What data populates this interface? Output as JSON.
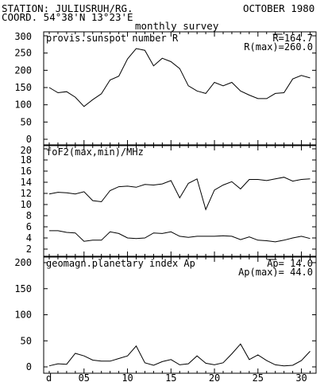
{
  "header": {
    "station": "STATION: JULIUSRUH/RG.",
    "coord": "COORD. 54°38'N 13°23'E",
    "month": "OCTOBER 1980",
    "survey": "monthly survey"
  },
  "chart_data": [
    {
      "type": "line",
      "title": "provis.sunspot number R",
      "stats": [
        "R=164.7",
        "R(max)=260.0"
      ],
      "ylim": [
        0,
        300
      ],
      "yticks": [
        "0",
        "50",
        "100",
        "150",
        "200",
        "250",
        "300"
      ],
      "x": [
        1,
        2,
        3,
        4,
        5,
        6,
        7,
        8,
        9,
        10,
        11,
        12,
        13,
        14,
        15,
        16,
        17,
        18,
        19,
        20,
        21,
        22,
        23,
        24,
        25,
        26,
        27,
        28,
        29,
        30,
        31
      ],
      "series": [
        {
          "values": [
            150,
            135,
            138,
            122,
            95,
            115,
            132,
            172,
            183,
            233,
            263,
            258,
            213,
            235,
            225,
            205,
            155,
            140,
            133,
            165,
            155,
            165,
            140,
            128,
            118,
            118,
            133,
            135,
            175,
            185,
            178
          ]
        }
      ]
    },
    {
      "type": "line",
      "title": "foF2(max,min)/MHz",
      "ylim": [
        0,
        20
      ],
      "yticks": [
        "2",
        "4",
        "6",
        "8",
        "10",
        "12",
        "14",
        "16",
        "18",
        "20"
      ],
      "x": [
        1,
        2,
        3,
        4,
        5,
        6,
        7,
        8,
        9,
        10,
        11,
        12,
        13,
        14,
        15,
        16,
        17,
        18,
        19,
        20,
        21,
        22,
        23,
        24,
        25,
        26,
        27,
        28,
        29,
        30,
        31
      ],
      "series": [
        {
          "values": [
            11.9,
            12.2,
            12.1,
            11.9,
            12.3,
            10.7,
            10.5,
            12.5,
            13.2,
            13.3,
            13.1,
            13.6,
            13.5,
            13.7,
            14.3,
            11.2,
            13.8,
            14.6,
            9.1,
            12.6,
            13.5,
            14.1,
            12.8,
            14.5,
            14.5,
            14.3,
            14.6,
            14.9,
            14.2,
            14.5,
            14.6
          ]
        },
        {
          "values": [
            5.3,
            5.3,
            5.0,
            4.9,
            3.4,
            3.6,
            3.6,
            5.1,
            4.8,
            4.0,
            3.9,
            4.0,
            4.9,
            4.8,
            5.1,
            4.3,
            4.1,
            4.3,
            4.3,
            4.3,
            4.4,
            4.3,
            3.7,
            4.2,
            3.6,
            3.5,
            3.3,
            3.6,
            4.0,
            4.3,
            3.9
          ]
        }
      ]
    },
    {
      "type": "line",
      "title": "geomagn.planetary index Ap",
      "stats": [
        "Ap= 14.0",
        "Ap(max)= 44.0"
      ],
      "ylim": [
        0,
        200
      ],
      "yticks": [
        "0",
        "50",
        "100",
        "150",
        "200"
      ],
      "xticks": [
        "d",
        "05",
        "10",
        "15",
        "20",
        "25",
        "30"
      ],
      "x": [
        1,
        2,
        3,
        4,
        5,
        6,
        7,
        8,
        9,
        10,
        11,
        12,
        13,
        14,
        15,
        16,
        17,
        18,
        19,
        20,
        21,
        22,
        23,
        24,
        25,
        26,
        27,
        28,
        29,
        30,
        31
      ],
      "series": [
        {
          "values": [
            2,
            6,
            5,
            26,
            21,
            13,
            11,
            11,
            16,
            21,
            40,
            8,
            3,
            10,
            14,
            4,
            6,
            21,
            7,
            4,
            8,
            25,
            44,
            14,
            23,
            12,
            4,
            2,
            3,
            12,
            30
          ]
        }
      ]
    }
  ]
}
